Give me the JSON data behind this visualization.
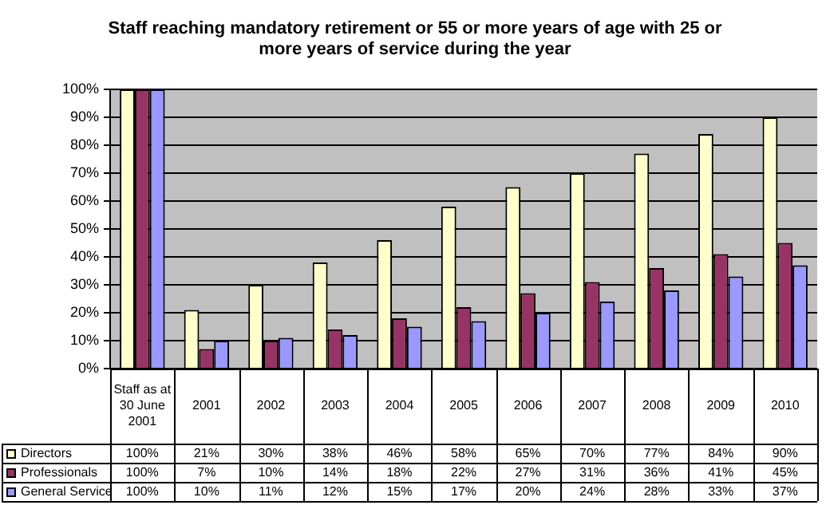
{
  "chart_data": {
    "type": "bar",
    "title": "Staff reaching mandatory retirement or 55 or more years of age with 25 or more years of service during the year",
    "categories": [
      "Staff as at 30 June 2001",
      "2001",
      "2002",
      "2003",
      "2004",
      "2005",
      "2006",
      "2007",
      "2008",
      "2009",
      "2010"
    ],
    "series": [
      {
        "name": "Directors",
        "color": "#ffffcc",
        "values": [
          100,
          21,
          30,
          38,
          46,
          58,
          65,
          70,
          77,
          84,
          90
        ],
        "value_labels": [
          "100%",
          "21%",
          "30%",
          "38%",
          "46%",
          "58%",
          "65%",
          "70%",
          "77%",
          "84%",
          "90%"
        ]
      },
      {
        "name": "Professionals",
        "color": "#993366",
        "values": [
          100,
          7,
          10,
          14,
          18,
          22,
          27,
          31,
          36,
          41,
          45
        ],
        "value_labels": [
          "100%",
          "7%",
          "10%",
          "14%",
          "18%",
          "22%",
          "27%",
          "31%",
          "36%",
          "41%",
          "45%"
        ]
      },
      {
        "name": "General Service",
        "color": "#9999ff",
        "values": [
          100,
          10,
          11,
          12,
          15,
          17,
          20,
          24,
          28,
          33,
          37
        ],
        "value_labels": [
          "100%",
          "10%",
          "11%",
          "12%",
          "15%",
          "17%",
          "20%",
          "24%",
          "28%",
          "33%",
          "37%"
        ]
      }
    ],
    "ylim": [
      0,
      100
    ],
    "yticks": [
      {
        "value": 0,
        "label": "0%"
      },
      {
        "value": 10,
        "label": "10%"
      },
      {
        "value": 20,
        "label": "20%"
      },
      {
        "value": 30,
        "label": "30%"
      },
      {
        "value": 40,
        "label": "40%"
      },
      {
        "value": 50,
        "label": "50%"
      },
      {
        "value": 60,
        "label": "60%"
      },
      {
        "value": 70,
        "label": "70%"
      },
      {
        "value": 80,
        "label": "80%"
      },
      {
        "value": 90,
        "label": "90%"
      },
      {
        "value": 100,
        "label": "100%"
      }
    ],
    "grid": "y",
    "legend": "bottom"
  }
}
